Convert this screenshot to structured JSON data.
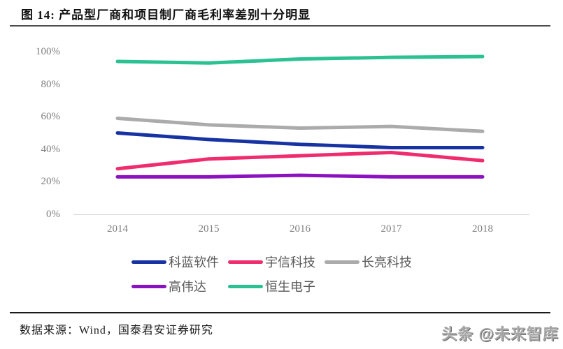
{
  "header": {
    "title": "图 14: 产品型厂商和项目制厂商毛利率差别十分明显"
  },
  "chart_data": {
    "type": "line",
    "title": "",
    "xlabel": "",
    "ylabel": "",
    "categories": [
      "2014",
      "2015",
      "2016",
      "2017",
      "2018"
    ],
    "series": [
      {
        "name": "科蓝软件",
        "color": "#1733A3",
        "values": [
          50,
          46,
          43,
          41,
          41
        ]
      },
      {
        "name": "宇信科技",
        "color": "#EF2D6E",
        "values": [
          28,
          34,
          36,
          38,
          33
        ]
      },
      {
        "name": "长亮科技",
        "color": "#ABABAB",
        "values": [
          59,
          55,
          53,
          54,
          51
        ]
      },
      {
        "name": "高伟达",
        "color": "#8B12BF",
        "values": [
          23,
          23,
          24,
          23,
          23
        ]
      },
      {
        "name": "恒生电子",
        "color": "#2BC193",
        "values": [
          94,
          93,
          95.5,
          96.5,
          97
        ]
      }
    ],
    "yticks": [
      "0%",
      "20%",
      "40%",
      "60%",
      "80%",
      "100%"
    ],
    "ytick_values": [
      0,
      20,
      40,
      60,
      80,
      100
    ],
    "ylim": [
      0,
      100
    ],
    "grid": false,
    "legend_position": "bottom"
  },
  "footer": {
    "source": "数据来源：Wind，国泰君安证券研究"
  },
  "watermark": {
    "text": "头条 @未来智库"
  }
}
